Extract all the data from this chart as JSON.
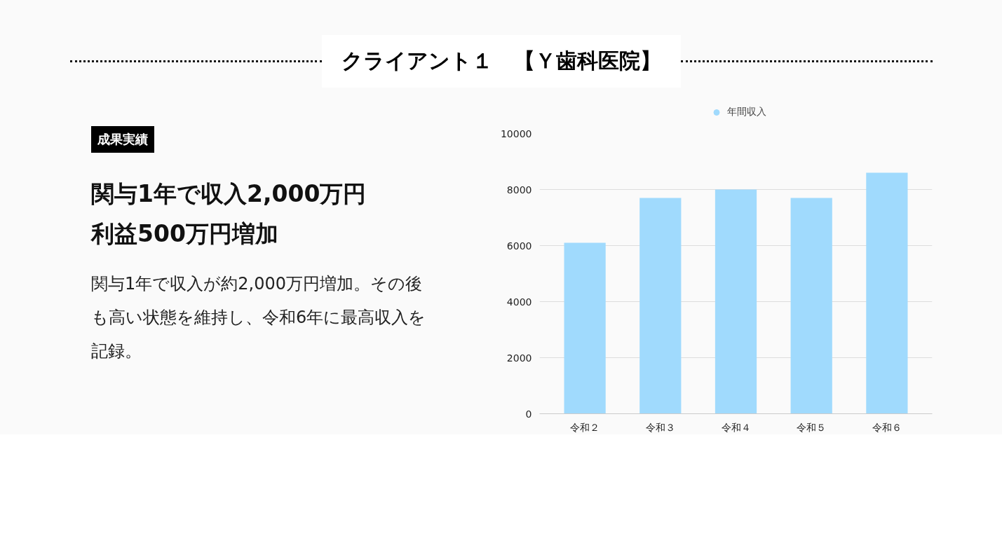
{
  "chart_data": {
    "type": "bar",
    "title": "クライアント１　【Ｙ歯科医院】",
    "annotations": [
      "成果実績",
      "関与1年で収入2,000万円",
      "利益500万円増加",
      "関与1年で収入が約2,000万円増加。その後も高い状態を維持し、令和6年に最高収入を記録。"
    ],
    "categories": [
      "令和２",
      "令和３",
      "令和４",
      "令和５",
      "令和６"
    ],
    "series": [
      {
        "name": "年間収入",
        "color": "#a0dafd",
        "values": [
          6100,
          7700,
          8000,
          7700,
          8600
        ]
      }
    ],
    "ylim": [
      0,
      10000
    ],
    "yticks": [
      0,
      2000,
      4000,
      6000,
      8000,
      10000
    ],
    "grid": "y",
    "legend": "top"
  }
}
